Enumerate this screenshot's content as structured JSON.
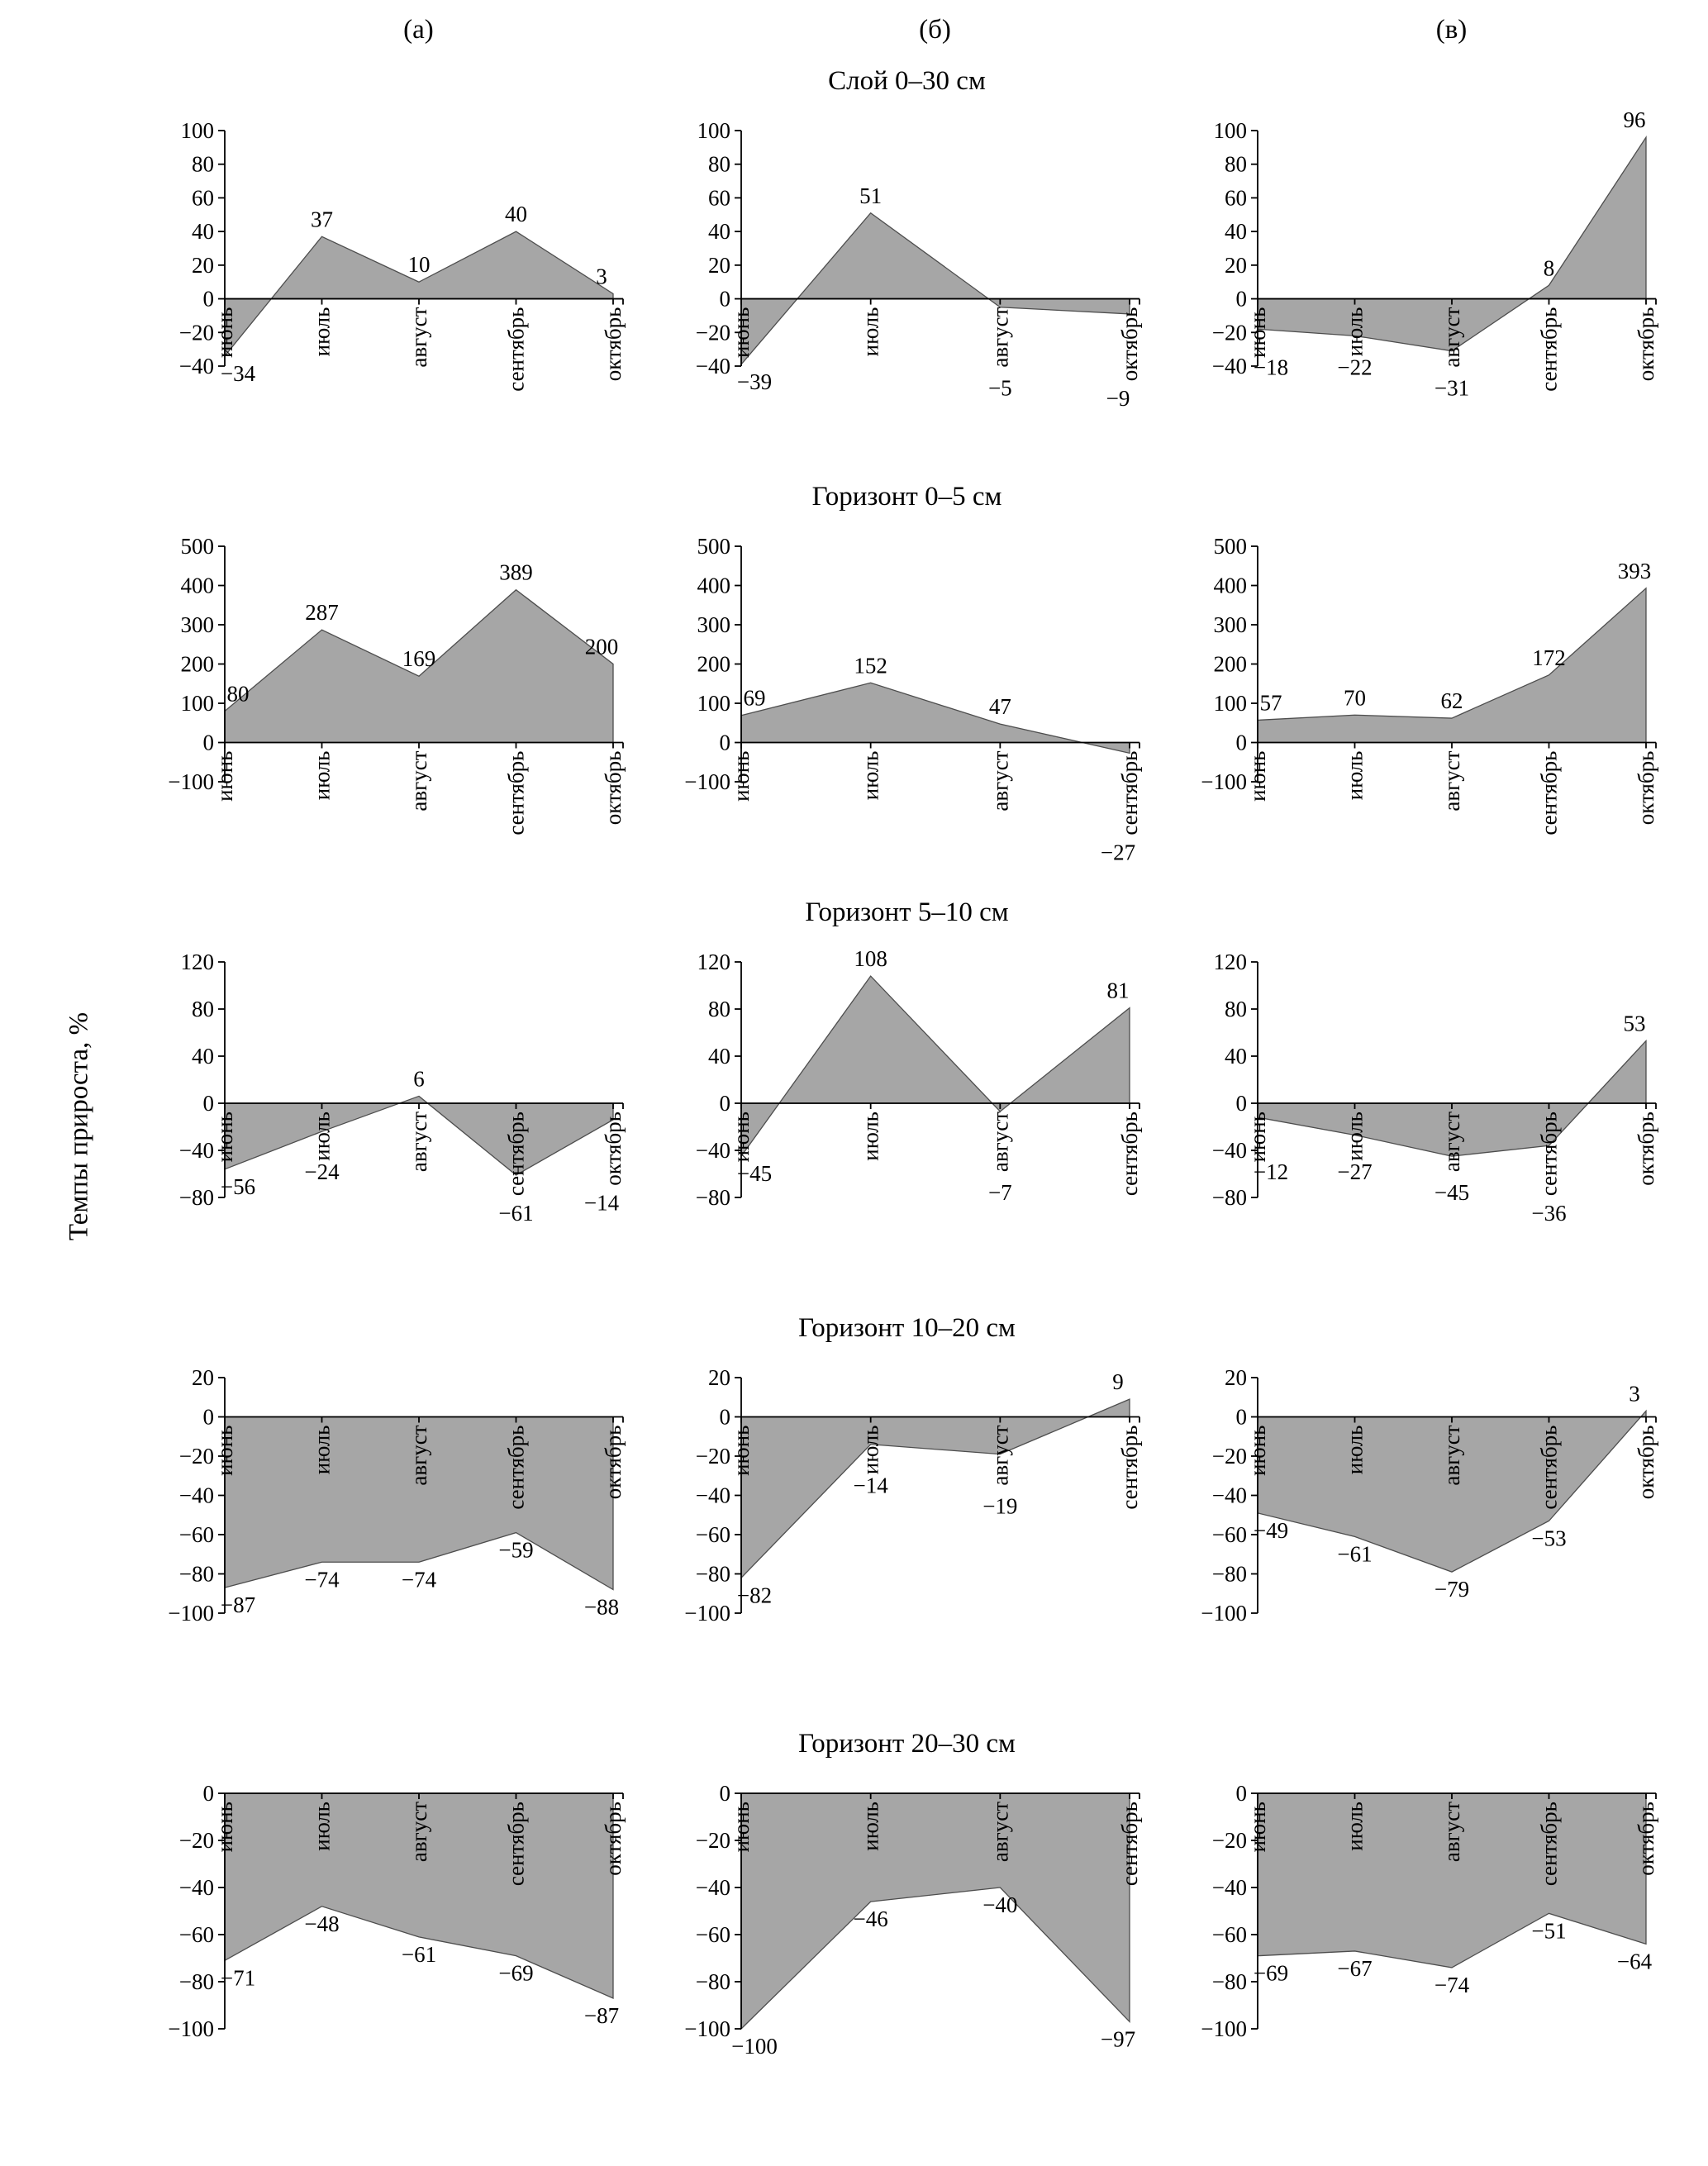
{
  "figure": {
    "ylabel": "Темпы прироста, %",
    "column_labels": [
      "(а)",
      "(б)",
      "(в)"
    ],
    "fill_color": "#a6a6a6",
    "line_color": "#4d4d4d",
    "axis_color": "#000000"
  },
  "chart_data": [
    {
      "type": "area",
      "title": "Слой 0–30 см",
      "ylim": [
        -40,
        100
      ],
      "ystep": 20,
      "charts": [
        {
          "col": "(а)",
          "categories": [
            "июнь",
            "июль",
            "август",
            "сентябрь",
            "октябрь"
          ],
          "values": [
            -34,
            37,
            10,
            40,
            3
          ]
        },
        {
          "col": "(б)",
          "categories": [
            "июнь",
            "июль",
            "август",
            "октябрь"
          ],
          "values": [
            -39,
            51,
            -5,
            -9
          ]
        },
        {
          "col": "(в)",
          "categories": [
            "июнь",
            "июль",
            "август",
            "сентябрь",
            "октябрь"
          ],
          "values": [
            -18,
            -22,
            -31,
            8,
            96
          ]
        }
      ]
    },
    {
      "type": "area",
      "title": "Горизонт 0–5 см",
      "ylim": [
        -100,
        500
      ],
      "ystep": 100,
      "charts": [
        {
          "col": "(а)",
          "categories": [
            "июнь",
            "июль",
            "август",
            "сентябрь",
            "октябрь"
          ],
          "values": [
            80,
            287,
            169,
            389,
            200
          ]
        },
        {
          "col": "(б)",
          "categories": [
            "июнь",
            "июль",
            "август",
            "сентябрь"
          ],
          "values": [
            69,
            152,
            47,
            -27
          ]
        },
        {
          "col": "(в)",
          "categories": [
            "июнь",
            "июль",
            "август",
            "сентябрь",
            "октябрь"
          ],
          "values": [
            57,
            70,
            62,
            172,
            393
          ]
        }
      ]
    },
    {
      "type": "area",
      "title": "Горизонт 5–10 см",
      "ylim": [
        -80,
        120
      ],
      "ystep": 40,
      "charts": [
        {
          "col": "(а)",
          "categories": [
            "июнь",
            "июль",
            "август",
            "сентябрь",
            "октябрь"
          ],
          "values": [
            -56,
            -24,
            6,
            -61,
            -14
          ]
        },
        {
          "col": "(б)",
          "categories": [
            "июнь",
            "июль",
            "август",
            "сентябрь"
          ],
          "values": [
            -45,
            108,
            -7,
            81
          ]
        },
        {
          "col": "(в)",
          "categories": [
            "июнь",
            "июль",
            "август",
            "сентябрь",
            "октябрь"
          ],
          "values": [
            -12,
            -27,
            -45,
            -36,
            53
          ]
        }
      ]
    },
    {
      "type": "area",
      "title": "Горизонт 10–20 см",
      "ylim": [
        -100,
        20
      ],
      "ystep": 20,
      "charts": [
        {
          "col": "(а)",
          "categories": [
            "июнь",
            "июль",
            "август",
            "сентябрь",
            "октябрь"
          ],
          "values": [
            -87,
            -74,
            -74,
            -59,
            -88
          ]
        },
        {
          "col": "(б)",
          "categories": [
            "июнь",
            "июль",
            "август",
            "сентябрь"
          ],
          "values": [
            -82,
            -14,
            -19,
            9
          ]
        },
        {
          "col": "(в)",
          "categories": [
            "июнь",
            "июль",
            "август",
            "сентябрь",
            "октябрь"
          ],
          "values": [
            -49,
            -61,
            -79,
            -53,
            3
          ]
        }
      ]
    },
    {
      "type": "area",
      "title": "Горизонт 20–30 см",
      "ylim": [
        -100,
        0
      ],
      "ystep": 20,
      "charts": [
        {
          "col": "(а)",
          "categories": [
            "июнь",
            "июль",
            "август",
            "сентябрь",
            "октябрь"
          ],
          "values": [
            -71,
            -48,
            -61,
            -69,
            -87
          ]
        },
        {
          "col": "(б)",
          "categories": [
            "июнь",
            "июль",
            "август",
            "сентябрь"
          ],
          "values": [
            -100,
            -46,
            -40,
            -97
          ]
        },
        {
          "col": "(в)",
          "categories": [
            "июнь",
            "июль",
            "август",
            "сентябрь",
            "октябрь"
          ],
          "values": [
            -69,
            -67,
            -74,
            -51,
            -64
          ]
        }
      ]
    }
  ]
}
